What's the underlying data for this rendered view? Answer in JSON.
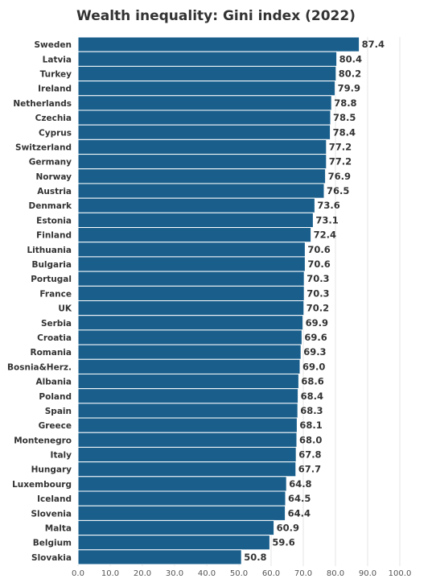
{
  "chart_data": {
    "type": "bar",
    "orientation": "horizontal",
    "title": "Wealth inequality: Gini index (2022)",
    "categories": [
      "Sweden",
      "Latvia",
      "Turkey",
      "Ireland",
      "Netherlands",
      "Czechia",
      "Cyprus",
      "Switzerland",
      "Germany",
      "Norway",
      "Austria",
      "Denmark",
      "Estonia",
      "Finland",
      "Lithuania",
      "Bulgaria",
      "Portugal",
      "France",
      "UK",
      "Serbia",
      "Croatia",
      "Romania",
      "Bosnia&Herz.",
      "Albania",
      "Poland",
      "Spain",
      "Greece",
      "Montenegro",
      "Italy",
      "Hungary",
      "Luxembourg",
      "Iceland",
      "Slovenia",
      "Malta",
      "Belgium",
      "Slovakia"
    ],
    "values": [
      87.4,
      80.4,
      80.2,
      79.9,
      78.8,
      78.5,
      78.4,
      77.2,
      77.2,
      76.9,
      76.5,
      73.6,
      73.1,
      72.4,
      70.6,
      70.6,
      70.3,
      70.3,
      70.2,
      69.9,
      69.6,
      69.3,
      69.0,
      68.6,
      68.4,
      68.3,
      68.1,
      68.0,
      67.8,
      67.7,
      64.8,
      64.5,
      64.4,
      60.9,
      59.6,
      50.8
    ],
    "value_labels": [
      "87.4",
      "80.4",
      "80.2",
      "79.9",
      "78.8",
      "78.5",
      "78.4",
      "77.2",
      "77.2",
      "76.9",
      "76.5",
      "73.6",
      "73.1",
      "72.4",
      "70.6",
      "70.6",
      "70.3",
      "70.3",
      "70.2",
      "69.9",
      "69.6",
      "69.3",
      "69.0",
      "68.6",
      "68.4",
      "68.3",
      "68.1",
      "68.0",
      "67.8",
      "67.7",
      "64.8",
      "64.5",
      "64.4",
      "60.9",
      "59.6",
      "50.8"
    ],
    "x_ticks": [
      "0.0",
      "10.0",
      "20.0",
      "30.0",
      "40.0",
      "50.0",
      "60.0",
      "70.0",
      "80.0",
      "90.0",
      "100.0"
    ],
    "xlim": [
      0,
      100
    ],
    "xlabel": "",
    "ylabel": "",
    "grid": true,
    "bar_color": "#1a5f8c",
    "bar_stroke_color": "#ffffff",
    "gridline_color": "#e6e6e6",
    "text_color": "#333333"
  }
}
